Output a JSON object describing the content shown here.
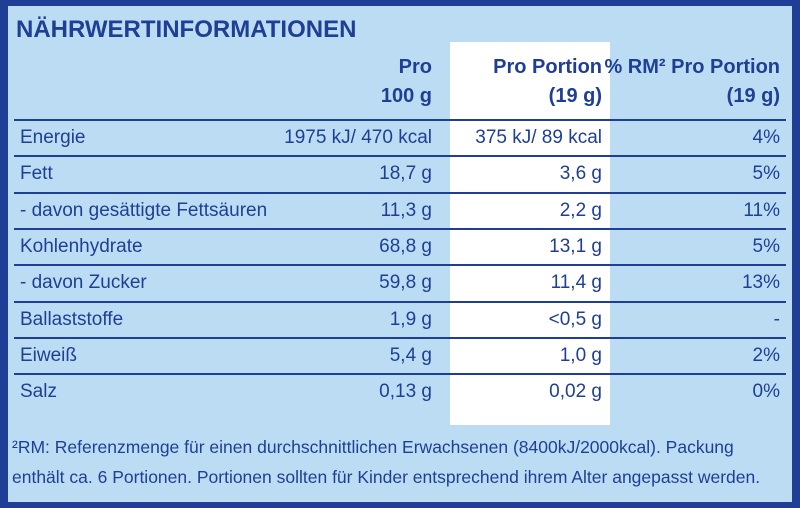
{
  "title": "NÄHRWERTINFORMATIONEN",
  "table": {
    "header": [
      [
        "Pro",
        "100 g"
      ],
      [
        "Pro Portion",
        "(19 g)"
      ],
      [
        "% RM² Pro Portion",
        "(19 g)"
      ]
    ],
    "rows": [
      [
        "Energie",
        "1975 kJ/ 470 kcal",
        "375 kJ/ 89 kcal",
        "4%"
      ],
      [
        "Fett",
        "18,7 g",
        "3,6 g",
        "5%"
      ],
      [
        "- davon gesättigte Fettsäuren",
        "11,3 g",
        "2,2 g",
        "11%"
      ],
      [
        "Kohlenhydrate",
        "68,8 g",
        "13,1 g",
        "5%"
      ],
      [
        "- davon Zucker",
        "59,8 g",
        "11,4 g",
        "13%"
      ],
      [
        "Ballaststoffe",
        "1,9 g",
        "<0,5 g",
        "-"
      ],
      [
        "Eiweiß",
        "5,4 g",
        "1,0 g",
        "2%"
      ],
      [
        "Salz",
        "0,13 g",
        "0,02 g",
        "0%"
      ]
    ]
  },
  "footnote": [
    "²RM: Referenzmenge für einen durchschnittlichen Erwachsenen (8400kJ/2000kcal). Packung",
    "enthält ca. 6 Portionen. Portionen sollten für Kinder entsprechend ihrem Alter angepasst werden."
  ]
}
